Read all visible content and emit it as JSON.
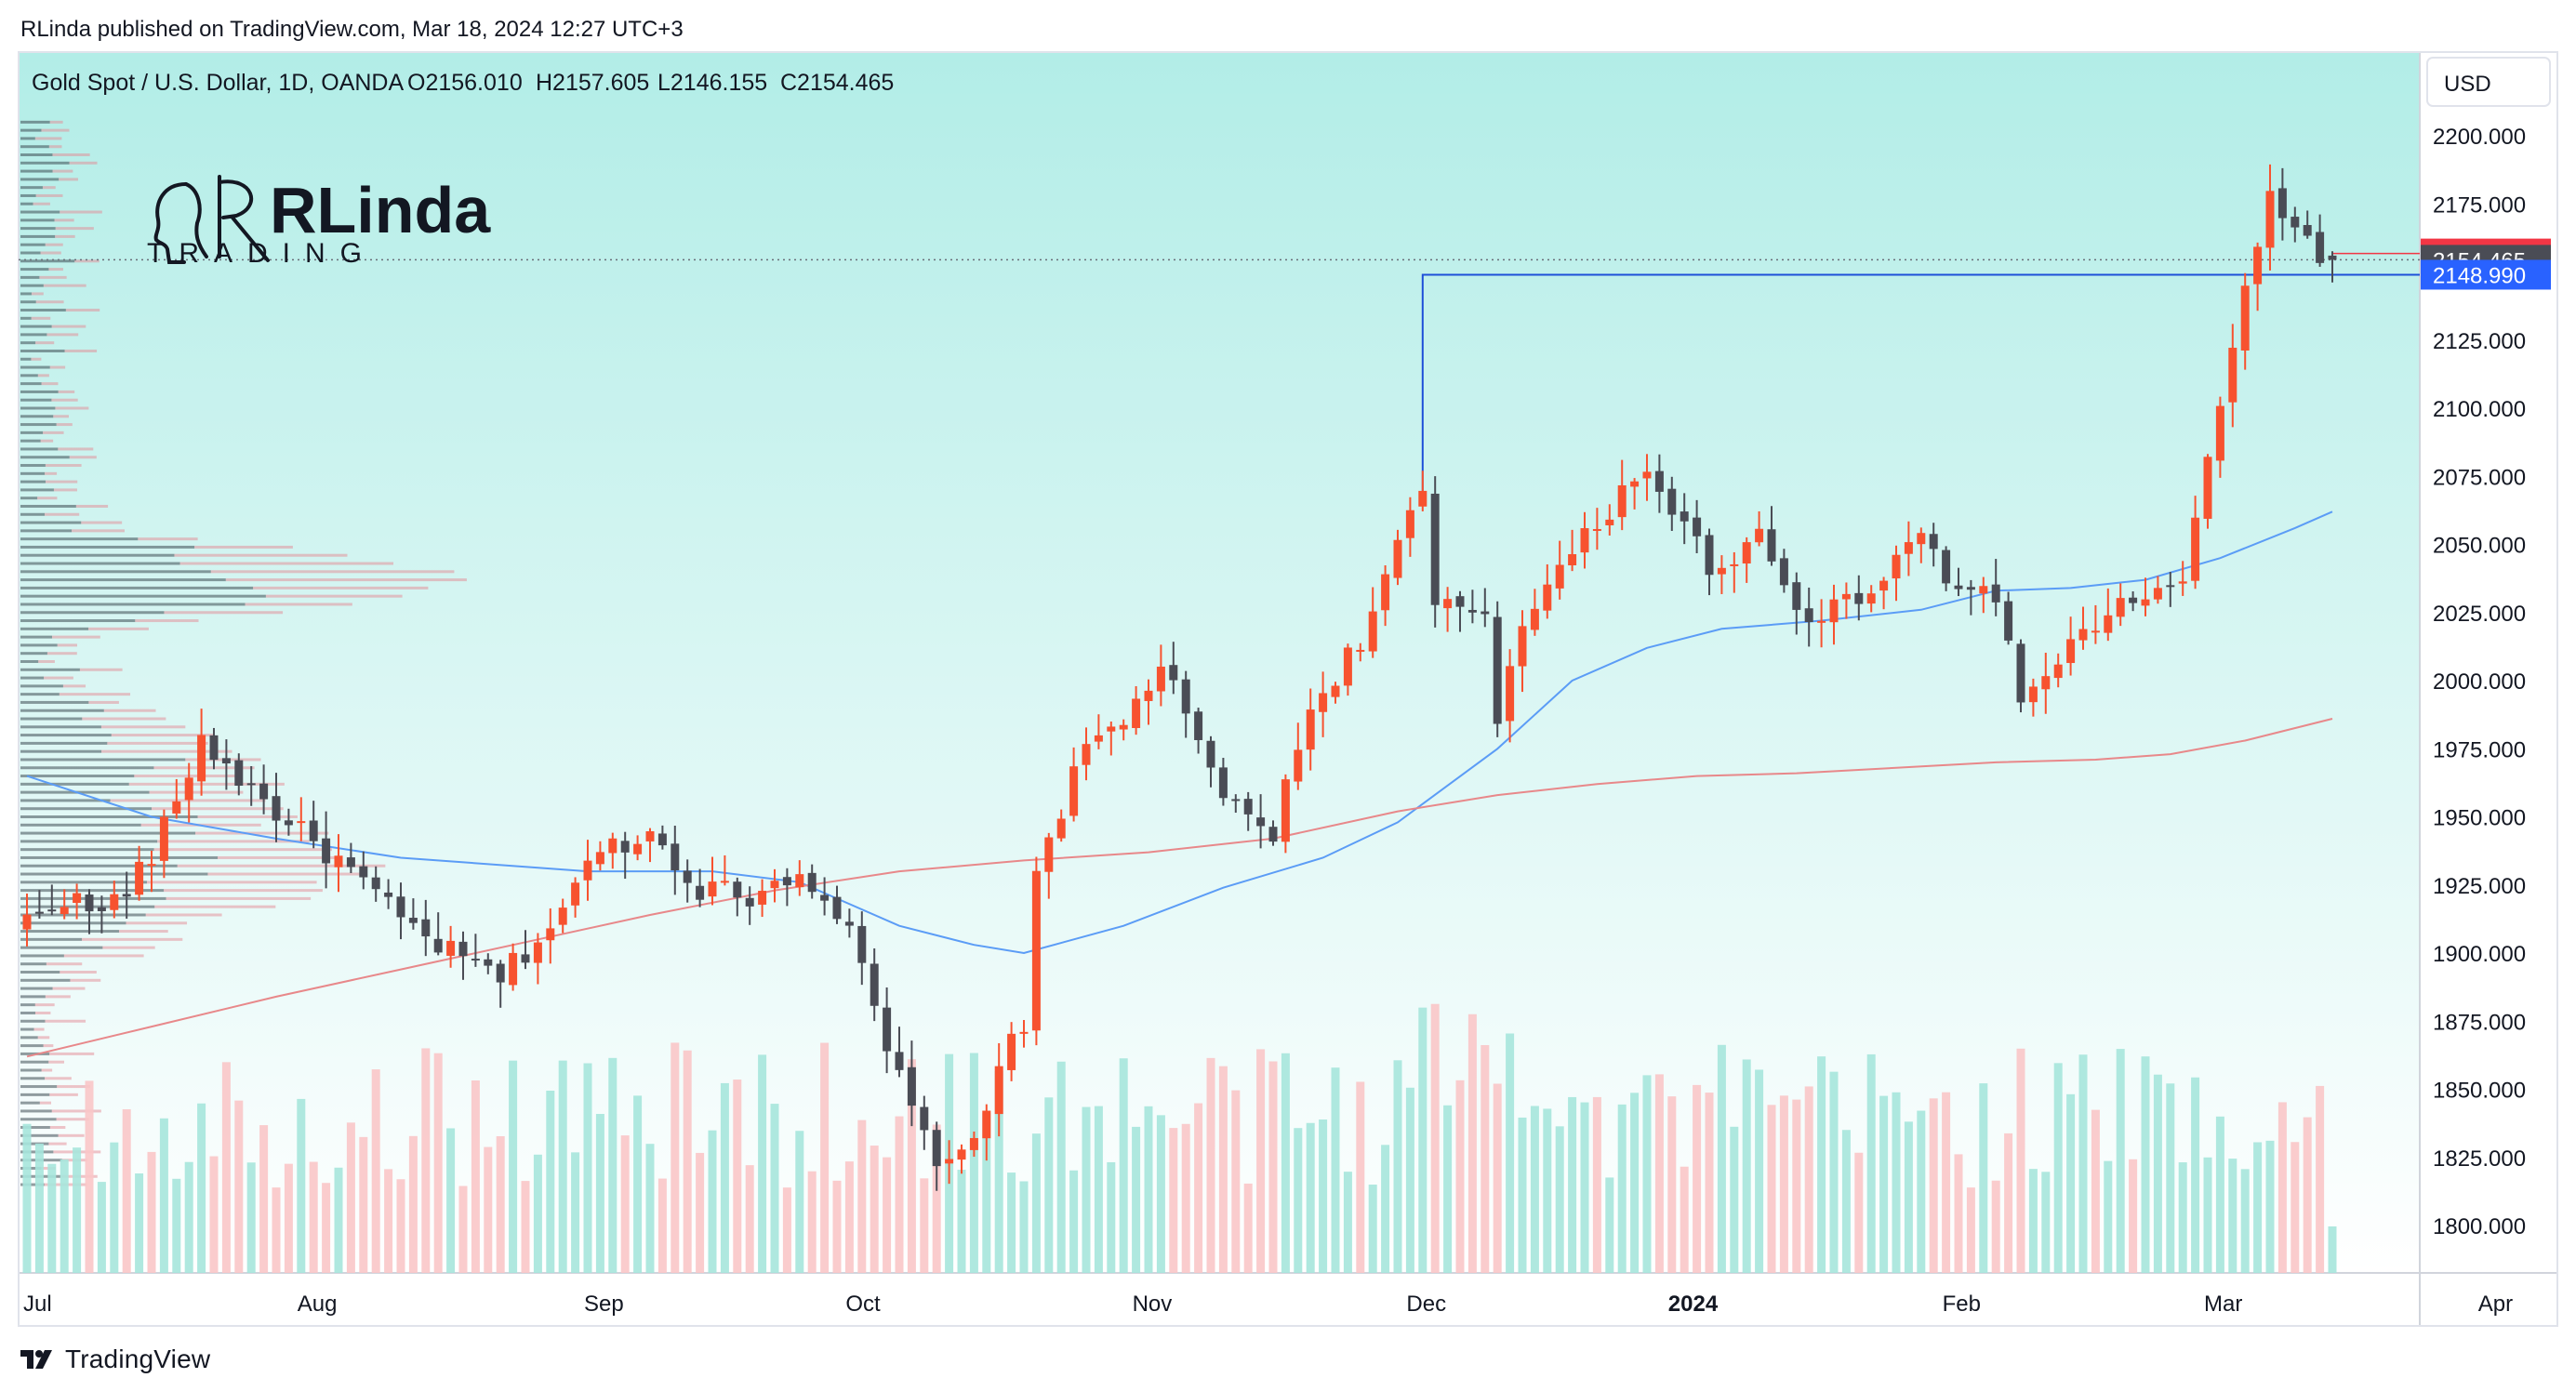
{
  "published": "RLinda published on TradingView.com, Mar 18, 2024 12:27 UTC+3",
  "footer_brand": "TradingView",
  "logo": {
    "text": "RLinda",
    "subtext": "TRADING"
  },
  "header": {
    "symbol": "Gold Spot / U.S. Dollar, 1D, OANDA",
    "open": "O2156.010",
    "high": "H2157.605",
    "low": "L2146.155",
    "close": "C2154.465"
  },
  "currency_button": "USD",
  "colors": {
    "bull": "#f7522f",
    "bear": "#4a4c55",
    "ma50": "#5b9cf6",
    "ma200": "#e8888a",
    "level": "#1e4fd8",
    "bg_top": "#b2ede7",
    "bg_bottom": "#ffffff"
  },
  "price_badges": [
    {
      "value": "2156.785",
      "color": "#f23645"
    },
    {
      "value": "2154.465",
      "color": "#4a4c55"
    },
    {
      "value": "2148.990",
      "color": "#2962ff"
    }
  ],
  "chart_data": {
    "type": "candlestick",
    "symbol": "XAUUSD",
    "timeframe": "1D",
    "ylim": [
      1785,
      2215
    ],
    "y_ticks": [
      "2200.000",
      "2175.000",
      "2150.000",
      "2125.000",
      "2100.000",
      "2075.000",
      "2050.000",
      "2025.000",
      "2000.000",
      "1975.000",
      "1950.000",
      "1925.000",
      "1900.000",
      "1875.000",
      "1850.000",
      "1825.000",
      "1800.000"
    ],
    "x_ticks": [
      {
        "label": "Jul",
        "i": 0,
        "bold": false
      },
      {
        "label": "Aug",
        "i": 22,
        "bold": false
      },
      {
        "label": "Sep",
        "i": 45,
        "bold": false
      },
      {
        "label": "Oct",
        "i": 66,
        "bold": false
      },
      {
        "label": "Nov",
        "i": 89,
        "bold": false
      },
      {
        "label": "Dec",
        "i": 111,
        "bold": false
      },
      {
        "label": "2024",
        "i": 132,
        "bold": true
      },
      {
        "label": "Feb",
        "i": 154,
        "bold": false
      },
      {
        "label": "Mar",
        "i": 175,
        "bold": false
      },
      {
        "label": "Apr",
        "i": 197,
        "bold": false
      }
    ],
    "anchors": [
      [
        0,
        1912
      ],
      [
        3,
        1921
      ],
      [
        6,
        1914
      ],
      [
        10,
        1935
      ],
      [
        14,
        1978
      ],
      [
        18,
        1960
      ],
      [
        22,
        1944
      ],
      [
        26,
        1930
      ],
      [
        30,
        1912
      ],
      [
        34,
        1900
      ],
      [
        38,
        1891
      ],
      [
        42,
        1910
      ],
      [
        46,
        1938
      ],
      [
        50,
        1944
      ],
      [
        54,
        1924
      ],
      [
        58,
        1921
      ],
      [
        62,
        1931
      ],
      [
        64,
        1921
      ],
      [
        66,
        1907
      ],
      [
        69,
        1864
      ],
      [
        72,
        1832
      ],
      [
        74,
        1820
      ],
      [
        76,
        1832
      ],
      [
        78,
        1860
      ],
      [
        80,
        1872
      ],
      [
        81,
        1932
      ],
      [
        85,
        1975
      ],
      [
        88,
        1985
      ],
      [
        91,
        2006
      ],
      [
        94,
        1975
      ],
      [
        97,
        1952
      ],
      [
        100,
        1945
      ],
      [
        103,
        1990
      ],
      [
        107,
        2015
      ],
      [
        110,
        2049
      ],
      [
        112,
        2069
      ],
      [
        113,
        2026
      ],
      [
        117,
        2026
      ],
      [
        118,
        1986
      ],
      [
        120,
        2024
      ],
      [
        124,
        2046
      ],
      [
        128,
        2069
      ],
      [
        130,
        2080
      ],
      [
        132,
        2062
      ],
      [
        136,
        2037
      ],
      [
        139,
        2053
      ],
      [
        141,
        2035
      ],
      [
        143,
        2023
      ],
      [
        147,
        2031
      ],
      [
        150,
        2045
      ],
      [
        152,
        2054
      ],
      [
        153,
        2051
      ],
      [
        154,
        2038
      ],
      [
        156,
        2037
      ],
      [
        159,
        2018
      ],
      [
        160,
        1992
      ],
      [
        164,
        2012
      ],
      [
        167,
        2025
      ],
      [
        170,
        2032
      ],
      [
        173,
        2034
      ],
      [
        175,
        2082
      ],
      [
        177,
        2123
      ],
      [
        179,
        2158
      ],
      [
        180,
        2178
      ],
      [
        182,
        2168
      ],
      [
        184,
        2155
      ],
      [
        185,
        2154.465
      ]
    ],
    "resistance_level": {
      "price": 2148.99,
      "from_i": 112
    },
    "current_line": 2156.785,
    "last_close_line": 2154.465,
    "moving_averages": [
      {
        "type": "sma",
        "period": 50,
        "points": [
          [
            0,
            1965
          ],
          [
            10,
            1950
          ],
          [
            20,
            1942
          ],
          [
            30,
            1935
          ],
          [
            45,
            1930
          ],
          [
            55,
            1930
          ],
          [
            62,
            1926
          ],
          [
            70,
            1910
          ],
          [
            76,
            1903
          ],
          [
            80,
            1900
          ],
          [
            88,
            1910
          ],
          [
            96,
            1924
          ],
          [
            104,
            1935
          ],
          [
            110,
            1948
          ],
          [
            118,
            1975
          ],
          [
            124,
            2000
          ],
          [
            130,
            2012
          ],
          [
            136,
            2019
          ],
          [
            144,
            2022
          ],
          [
            152,
            2026
          ],
          [
            158,
            2033
          ],
          [
            164,
            2034
          ],
          [
            170,
            2037
          ],
          [
            176,
            2045
          ],
          [
            182,
            2056
          ],
          [
            185,
            2062
          ]
        ]
      },
      {
        "type": "sma",
        "period": 200,
        "points": [
          [
            0,
            1862
          ],
          [
            10,
            1873
          ],
          [
            20,
            1884
          ],
          [
            30,
            1894
          ],
          [
            40,
            1904
          ],
          [
            50,
            1914
          ],
          [
            60,
            1923
          ],
          [
            70,
            1930
          ],
          [
            80,
            1934
          ],
          [
            90,
            1937
          ],
          [
            100,
            1942
          ],
          [
            110,
            1952
          ],
          [
            118,
            1958
          ],
          [
            126,
            1962
          ],
          [
            134,
            1965
          ],
          [
            142,
            1966
          ],
          [
            150,
            1968
          ],
          [
            158,
            1970
          ],
          [
            166,
            1971
          ],
          [
            172,
            1973
          ],
          [
            178,
            1978
          ],
          [
            185,
            1986
          ]
        ]
      }
    ]
  }
}
